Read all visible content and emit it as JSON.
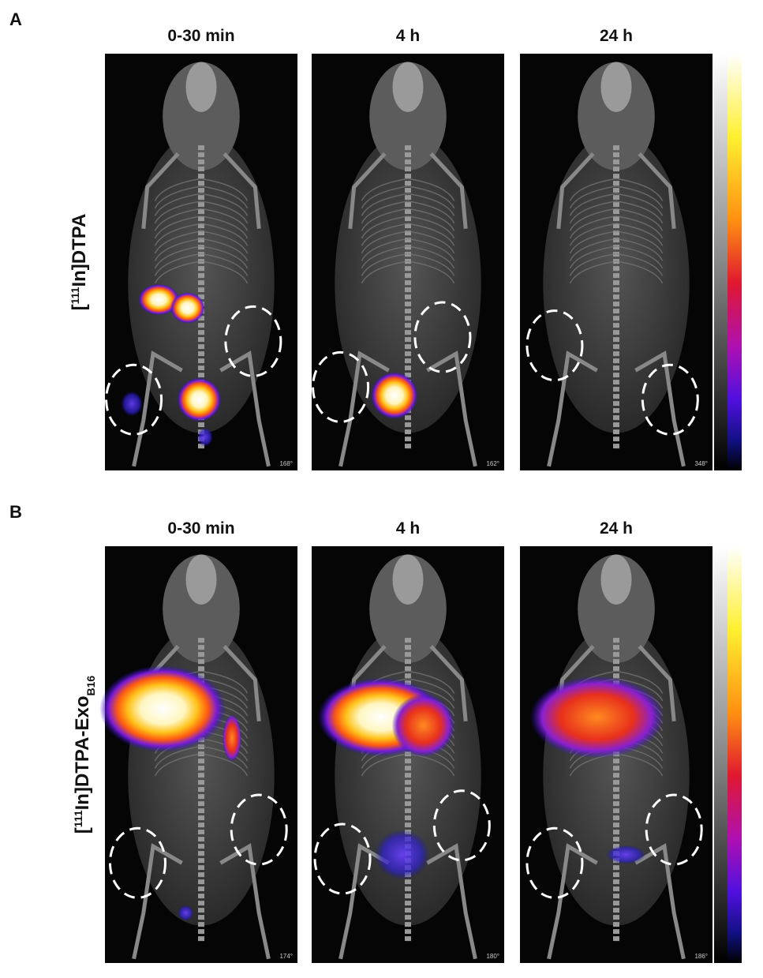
{
  "panels": [
    {
      "label": "A",
      "row_label": {
        "open": "[",
        "isotope": "111",
        "name": "In]DTPA"
      },
      "columns": [
        {
          "title": "0-30 min",
          "angle": "168°"
        },
        {
          "title": "4 h",
          "angle": "162°"
        },
        {
          "title": "24 h",
          "angle": "348°"
        }
      ]
    },
    {
      "label": "B",
      "row_label": {
        "open": "[",
        "isotope": "111",
        "name": "In]DTPA-Exo",
        "subscript": "B16"
      },
      "columns": [
        {
          "title": "0-30 min",
          "angle": "174°"
        },
        {
          "title": "4 h",
          "angle": "180°"
        },
        {
          "title": "24 h",
          "angle": "186°"
        }
      ]
    }
  ]
}
